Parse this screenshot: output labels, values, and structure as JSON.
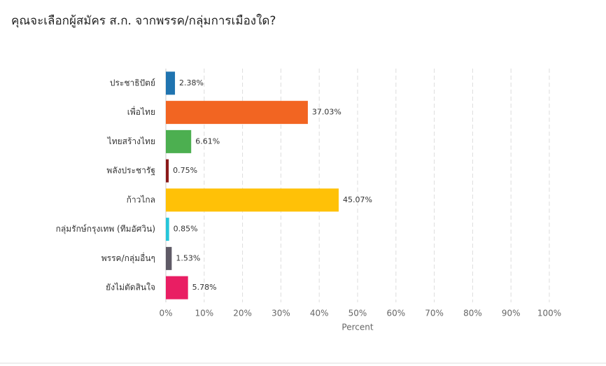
{
  "chart_data": {
    "type": "bar",
    "orientation": "horizontal",
    "title": "คุณจะเลือกผู้สมัคร ส.ก. จากพรรค/กลุ่มการเมืองใด?",
    "xlabel": "Percent",
    "categories": [
      "ประชาธิปัตย์",
      "เพื่อไทย",
      "ไทยสร้างไทย",
      "พลังประชารัฐ",
      "ก้าวไกล",
      "กลุ่มรักษ์กรุงเทพ (ทีมอัศวิน)",
      "พรรค/กลุ่มอื่นๆ",
      "ยังไม่ตัดสินใจ"
    ],
    "values": [
      2.38,
      37.03,
      6.61,
      0.75,
      45.07,
      0.85,
      1.53,
      5.78
    ],
    "value_labels": [
      "2.38%",
      "37.03%",
      "6.61%",
      "0.75%",
      "45.07%",
      "0.85%",
      "1.53%",
      "5.78%"
    ],
    "colors": [
      "#2074b0",
      "#f26522",
      "#4caf50",
      "#8b1a1a",
      "#ffc107",
      "#26c6da",
      "#5f5a66",
      "#e91e63"
    ],
    "xlim": [
      0,
      100
    ],
    "xticks": [
      {
        "value": 0,
        "label": "0%"
      },
      {
        "value": 10,
        "label": "10%"
      },
      {
        "value": 20,
        "label": "20%"
      },
      {
        "value": 30,
        "label": "30%"
      },
      {
        "value": 40,
        "label": "40%"
      },
      {
        "value": 50,
        "label": "50%"
      },
      {
        "value": 60,
        "label": "60%"
      },
      {
        "value": 70,
        "label": "70%"
      },
      {
        "value": 80,
        "label": "80%"
      },
      {
        "value": 90,
        "label": "90%"
      },
      {
        "value": 100,
        "label": "100%"
      }
    ],
    "grid": true
  }
}
